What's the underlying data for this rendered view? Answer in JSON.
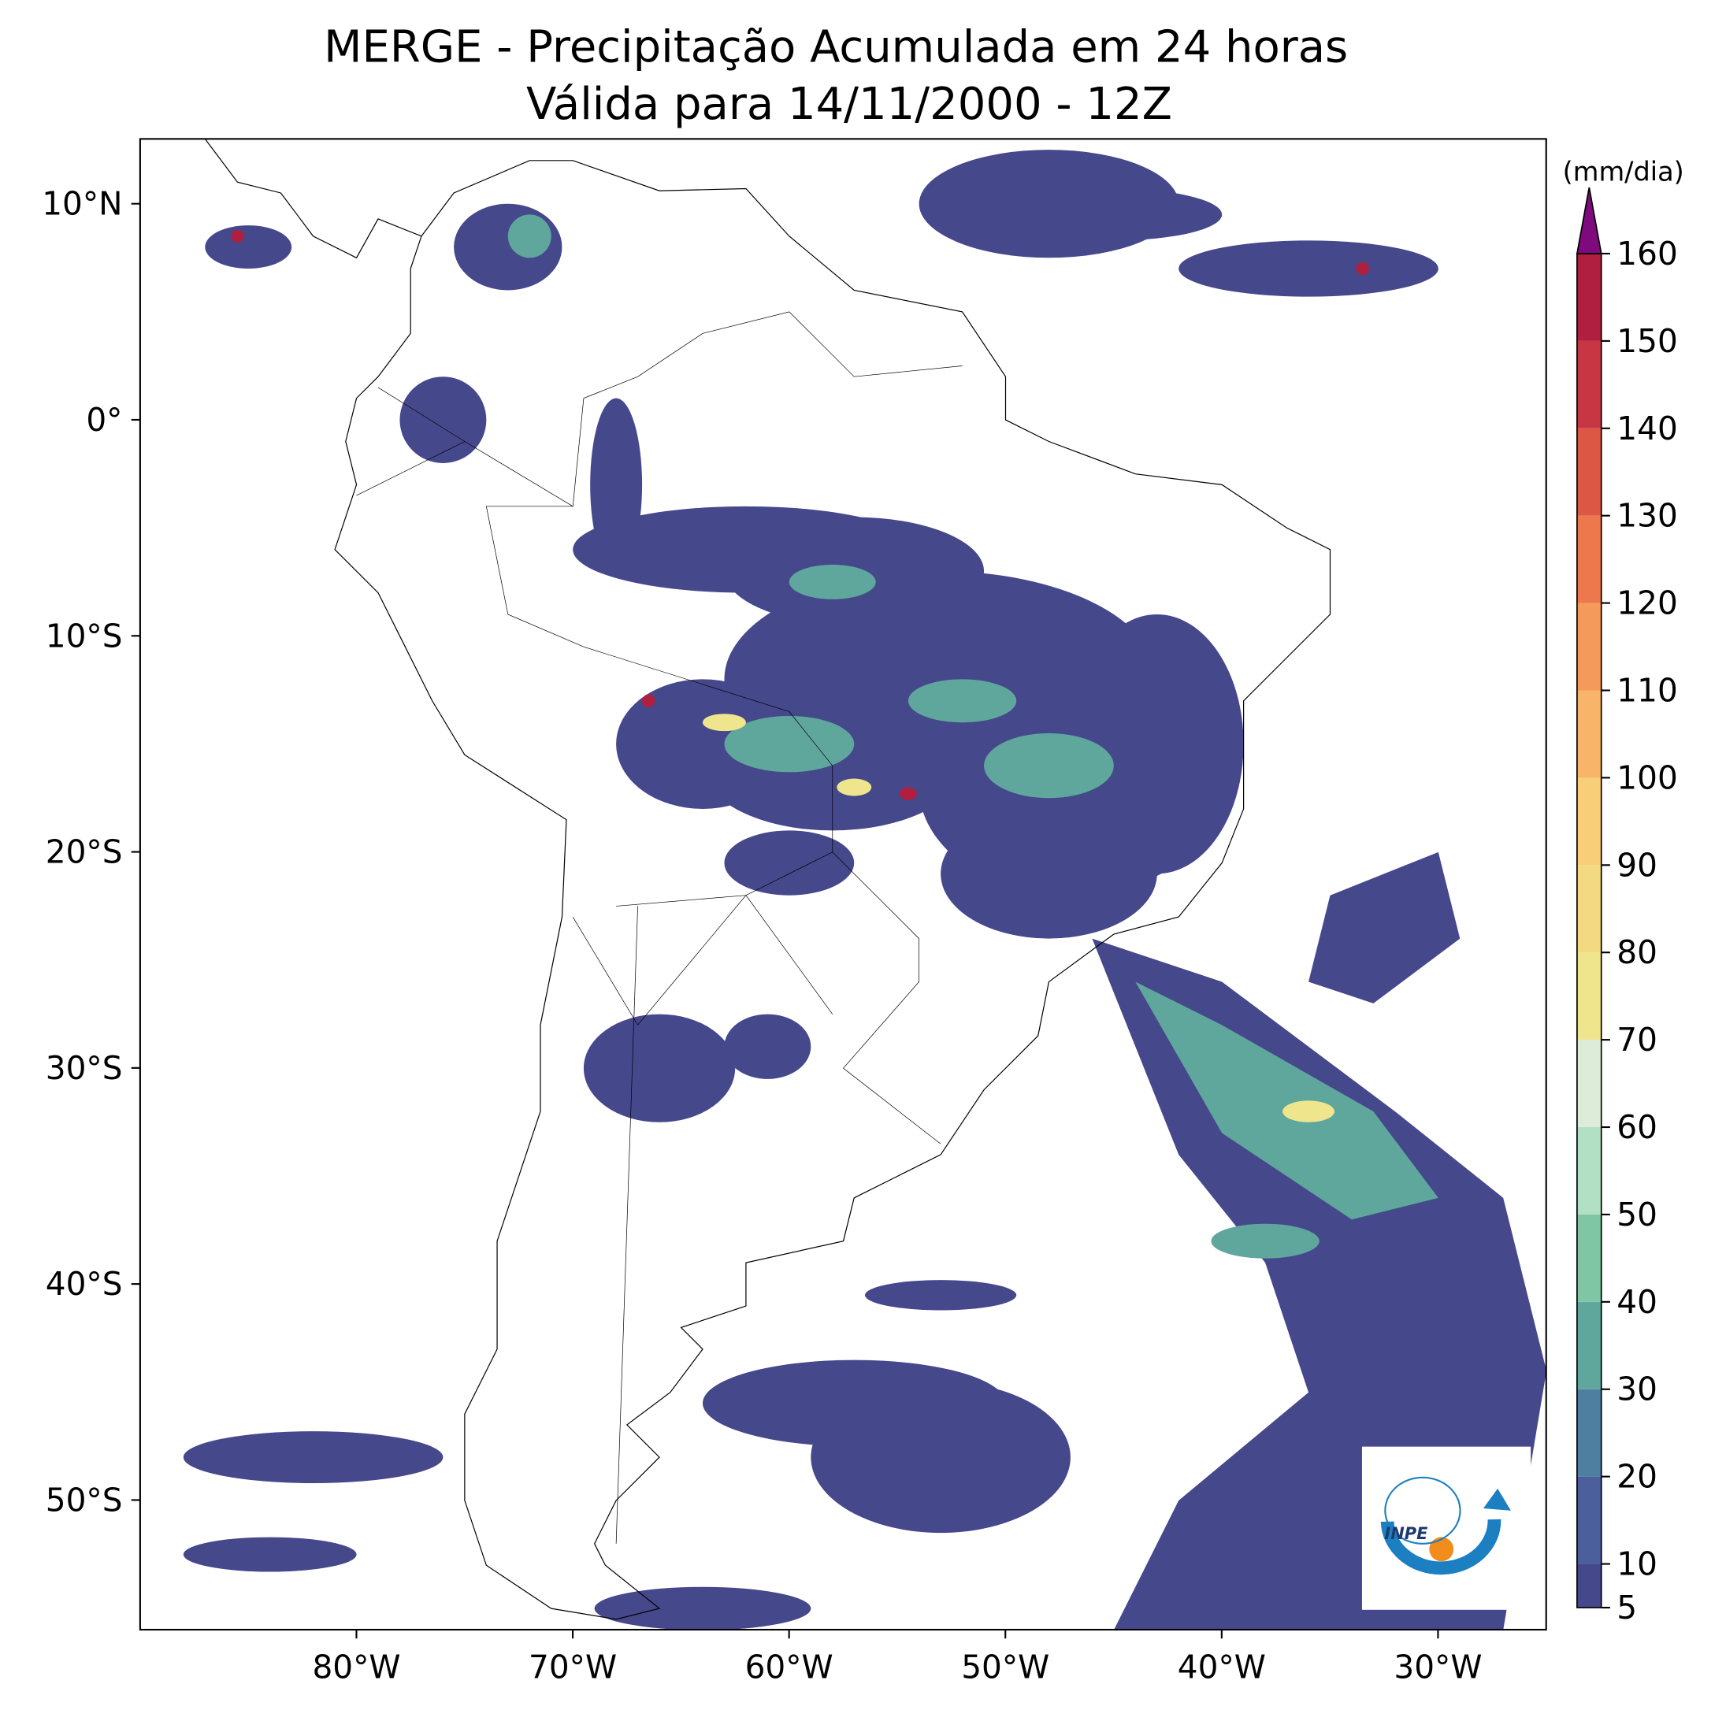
{
  "chart_data": {
    "type": "map",
    "title": "MERGE - Precipitação Acumulada em 24 horas",
    "subtitle": "Válida para 14/11/2000 - 12Z",
    "xlim": [
      -90,
      -25
    ],
    "ylim": [
      -56,
      13
    ],
    "xticks": [
      {
        "value": -80,
        "label": "80°W"
      },
      {
        "value": -70,
        "label": "70°W"
      },
      {
        "value": -60,
        "label": "60°W"
      },
      {
        "value": -50,
        "label": "50°W"
      },
      {
        "value": -40,
        "label": "40°W"
      },
      {
        "value": -30,
        "label": "30°W"
      }
    ],
    "yticks": [
      {
        "value": 10,
        "label": "10°N"
      },
      {
        "value": 0,
        "label": "0°"
      },
      {
        "value": -10,
        "label": "10°S"
      },
      {
        "value": -20,
        "label": "20°S"
      },
      {
        "value": -30,
        "label": "30°S"
      },
      {
        "value": -40,
        "label": "40°S"
      },
      {
        "value": -50,
        "label": "50°S"
      }
    ],
    "colorbar": {
      "label": "(mm/dia)",
      "ticks": [
        5,
        10,
        20,
        30,
        40,
        50,
        60,
        70,
        80,
        90,
        100,
        110,
        120,
        130,
        140,
        150,
        160
      ],
      "colors": [
        "#46488c",
        "#4b5f9c",
        "#4f7fa0",
        "#5fa79c",
        "#7fc6a4",
        "#b2e0c4",
        "#dcecd8",
        "#eee58c",
        "#f3da82",
        "#f8cf78",
        "#f8b468",
        "#f49a5a",
        "#ec784b",
        "#dd5745",
        "#c83644",
        "#b01f3f"
      ],
      "extend_color": "#7e0a7e"
    },
    "logo_text": "INPE"
  }
}
